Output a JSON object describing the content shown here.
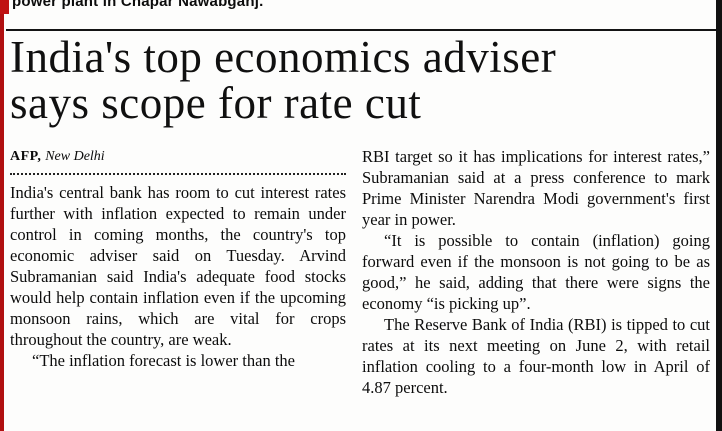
{
  "masthead": {
    "cut_line": "power plant in Chapar Nawabganj."
  },
  "article": {
    "headline_line1": "India's top economics adviser",
    "headline_line2": "says scope for rate cut",
    "byline": {
      "agency": "AFP,",
      "location": "New Delhi"
    },
    "left_column": {
      "p1": "India's central bank has room to cut interest rates further with inflation expected to remain under control in coming months, the country's top economic adviser said on Tuesday. Arvind Subramanian said India's adequate food stocks would help contain inflation even if the upcoming monsoon rains, which are vital for crops throughout the country, are weak.",
      "p2": "“The inflation forecast is lower than the"
    },
    "right_column": {
      "p1": "RBI target so it has implications for interest rates,” Subramanian said at a press conference to mark Prime Minister Narendra Modi government's first year in power.",
      "p2": "“It is possible to contain (inflation) going forward even if the monsoon is not going to be as good,” he said, adding that there were signs the economy “is picking up”.",
      "p3": "The Reserve Bank of India (RBI) is tipped to cut rates at its next meeting on June 2, with retail inflation cooling to a four-month low in April of 4.87 percent."
    }
  }
}
